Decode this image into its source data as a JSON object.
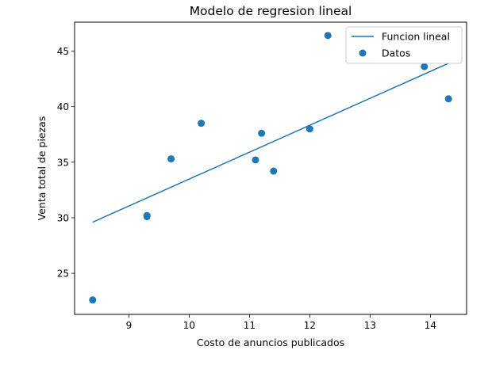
{
  "chart_data": {
    "type": "scatter",
    "title": "Modelo de regresion lineal",
    "xlabel": "Costo de anuncios publicados",
    "ylabel": "Venta total de piezas",
    "xlim": [
      8.1,
      14.6
    ],
    "ylim": [
      21.3,
      47.6
    ],
    "xticks": [
      9,
      10,
      11,
      12,
      13,
      14
    ],
    "yticks": [
      25,
      30,
      35,
      40,
      45
    ],
    "grid": false,
    "legend_position": "top-right",
    "series": [
      {
        "name": "Funcion lineal",
        "kind": "line",
        "color": "#1f77b4",
        "x": [
          8.4,
          14.3
        ],
        "y": [
          29.6,
          43.9
        ]
      },
      {
        "name": "Datos",
        "kind": "scatter",
        "color": "#1f77b4",
        "x": [
          8.4,
          9.3,
          9.3,
          9.7,
          10.2,
          11.1,
          11.2,
          11.4,
          12.0,
          12.3,
          13.9,
          14.3
        ],
        "y": [
          22.6,
          30.1,
          30.2,
          35.3,
          38.5,
          35.2,
          37.6,
          34.2,
          38.0,
          46.4,
          43.6,
          40.7
        ]
      }
    ]
  }
}
